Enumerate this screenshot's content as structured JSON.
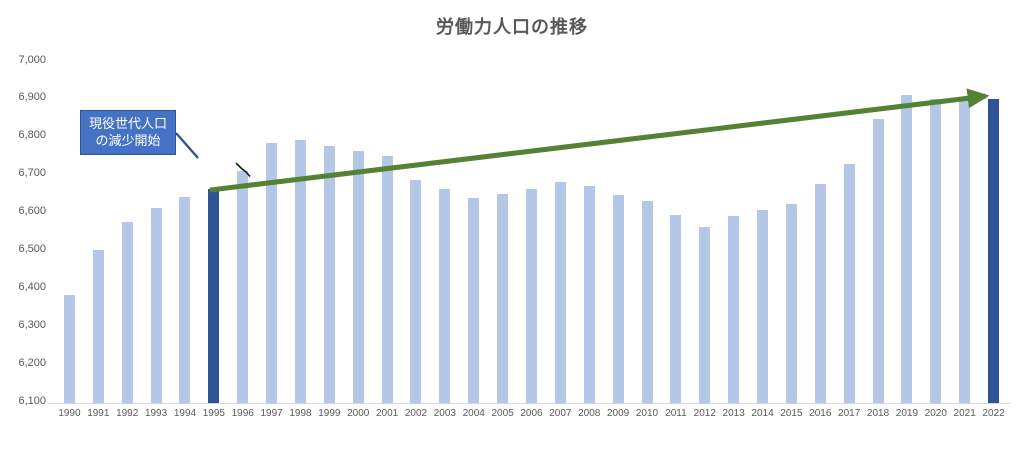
{
  "chart": {
    "title": "労働力人口の推移",
    "annotation": {
      "line1": "現役世代人口",
      "line2": "の減少開始"
    }
  },
  "chart_data": {
    "type": "bar",
    "title": "労働力人口の推移",
    "categories": [
      "1990",
      "1991",
      "1992",
      "1993",
      "1994",
      "1995",
      "1996",
      "1997",
      "1998",
      "1999",
      "2000",
      "2001",
      "2002",
      "2003",
      "2004",
      "2005",
      "2006",
      "2007",
      "2008",
      "2009",
      "2010",
      "2011",
      "2012",
      "2013",
      "2014",
      "2015",
      "2016",
      "2017",
      "2018",
      "2019",
      "2020",
      "2021",
      "2022"
    ],
    "values": [
      6384,
      6505,
      6578,
      6615,
      6645,
      6666,
      6711,
      6787,
      6793,
      6779,
      6766,
      6752,
      6689,
      6666,
      6642,
      6651,
      6664,
      6684,
      6674,
      6650,
      6632,
      6596,
      6565,
      6593,
      6609,
      6625,
      6678,
      6732,
      6849,
      6912,
      6902,
      6907,
      6902
    ],
    "xlabel": "",
    "ylabel": "",
    "ylim": [
      6100,
      7000
    ],
    "ytick_step": 100,
    "ytick_labels": [
      "6,100",
      "6,200",
      "6,300",
      "6,400",
      "6,500",
      "6,600",
      "6,700",
      "6,800",
      "6,900",
      "7,000"
    ],
    "grid": false,
    "legend_position": "none",
    "highlighted_categories": [
      "1995",
      "2022"
    ],
    "annotation": {
      "text": "現役世代人口の減少開始",
      "attached_to": "1995"
    },
    "trend_arrow": {
      "from": "1995",
      "to": "2022"
    }
  },
  "colors": {
    "bar_light": "#B4C7E7",
    "bar_dark": "#2F5496",
    "trend_arrow": "#548235",
    "annotation_fill": "#4472C4",
    "annotation_border": "#2F5496",
    "leader_line": "#2F5496",
    "axis_line": "#D6D6D6",
    "text": "#595959",
    "cursor_mark": "#1a1a1a"
  }
}
